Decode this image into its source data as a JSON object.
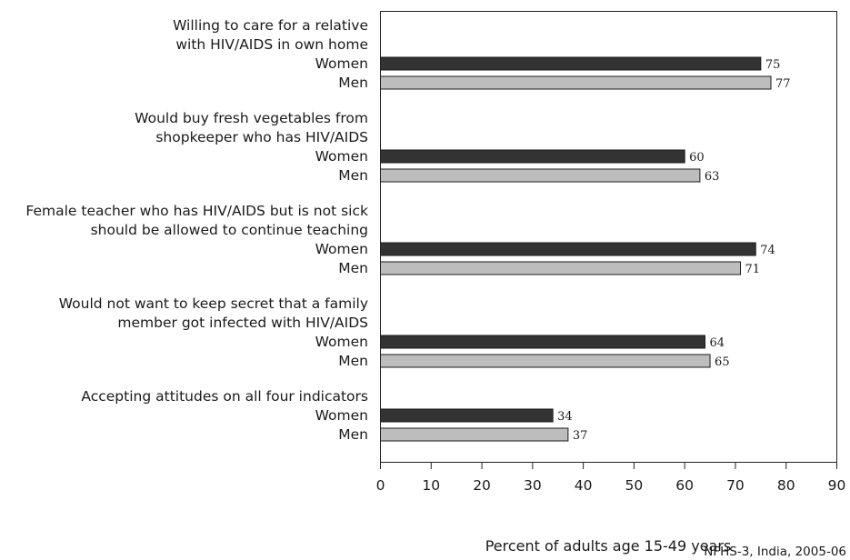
{
  "chart_data": {
    "type": "bar",
    "orientation": "horizontal",
    "xlabel": "Percent of adults age 15-49 years",
    "xlim": [
      0,
      90
    ],
    "xticks": [
      0,
      10,
      20,
      30,
      40,
      50,
      60,
      70,
      80,
      90
    ],
    "grid": false,
    "series_colors": {
      "Women": "#333333",
      "Men": "#bdbdbd"
    },
    "groups": [
      {
        "label_lines": [
          "Willing to care for a relative",
          "with HIV/AIDS in own home"
        ],
        "bars": [
          {
            "series": "Women",
            "value": 75
          },
          {
            "series": "Men",
            "value": 77
          }
        ]
      },
      {
        "label_lines": [
          "Would buy fresh vegetables from",
          "shopkeeper who has HIV/AIDS"
        ],
        "bars": [
          {
            "series": "Women",
            "value": 60
          },
          {
            "series": "Men",
            "value": 63
          }
        ]
      },
      {
        "label_lines": [
          "Female teacher who has HIV/AIDS but is not sick",
          "should be allowed to continue teaching"
        ],
        "bars": [
          {
            "series": "Women",
            "value": 74
          },
          {
            "series": "Men",
            "value": 71
          }
        ]
      },
      {
        "label_lines": [
          "Would not want to keep secret that a family",
          "member got infected with HIV/AIDS"
        ],
        "bars": [
          {
            "series": "Women",
            "value": 64
          },
          {
            "series": "Men",
            "value": 65
          }
        ]
      },
      {
        "label_lines": [
          "Accepting attitudes on all four indicators"
        ],
        "bars": [
          {
            "series": "Women",
            "value": 34
          },
          {
            "series": "Men",
            "value": 37
          }
        ]
      }
    ],
    "source_note": "NFHS-3, India, 2005-06"
  }
}
